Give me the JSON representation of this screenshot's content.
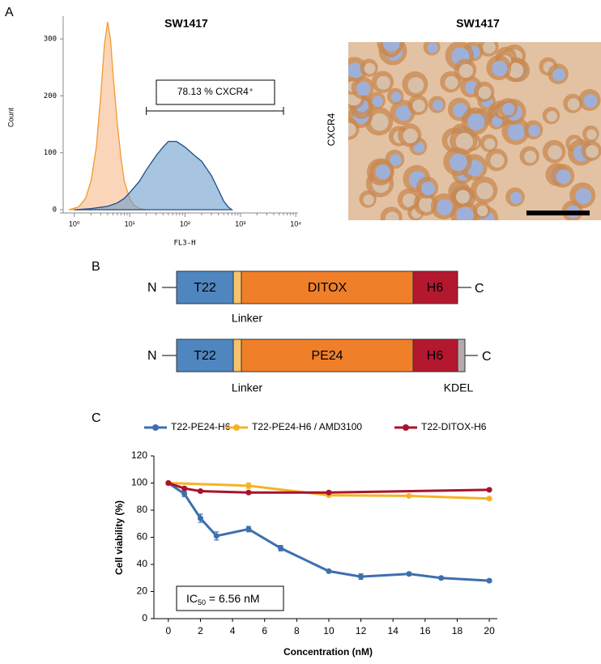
{
  "panel_labels": [
    "A",
    "B",
    "C"
  ],
  "chart_data": [
    {
      "type": "area",
      "title": "SW1417",
      "xlabel": "FL3-H",
      "ylabel": "Count",
      "xscale": "log",
      "xlim": [
        0.63,
        11000
      ],
      "xticks": [
        {
          "value": 1,
          "label": "10⁰"
        },
        {
          "value": 10,
          "label": "10¹"
        },
        {
          "value": 100,
          "label": "10²"
        },
        {
          "value": 1000,
          "label": "10³"
        },
        {
          "value": 10000,
          "label": "10⁴"
        }
      ],
      "ylim": [
        0,
        340
      ],
      "yticks": [
        0,
        100,
        200,
        300
      ],
      "series": [
        {
          "color": "#f39a2e",
          "fill": "#f7b98a",
          "x": [
            0.8,
            1.2,
            1.6,
            2,
            2.5,
            3,
            3.5,
            4,
            4.5,
            5,
            6,
            7,
            8,
            10,
            12,
            15,
            20
          ],
          "values": [
            0,
            5,
            20,
            50,
            110,
            200,
            290,
            330,
            300,
            240,
            150,
            90,
            50,
            20,
            8,
            2,
            0
          ]
        },
        {
          "color": "#1f4e8c",
          "fill": "#6c9dcc",
          "x": [
            1,
            2,
            4,
            6,
            8,
            10,
            15,
            20,
            30,
            40,
            50,
            70,
            100,
            150,
            200,
            300,
            400,
            500,
            600,
            700
          ],
          "values": [
            0,
            2,
            6,
            12,
            20,
            30,
            50,
            70,
            95,
            110,
            120,
            120,
            110,
            95,
            85,
            60,
            35,
            15,
            5,
            0
          ]
        }
      ],
      "annotation": {
        "text": "78.13 % CXCR4⁺",
        "range": [
          20,
          6000
        ]
      }
    },
    {
      "type": "line",
      "xlabel": "Concentration (nM)",
      "ylabel": "Cell viability (%)",
      "xlim": [
        -0.9,
        20.5
      ],
      "xticks": [
        0,
        2,
        4,
        6,
        8,
        10,
        12,
        14,
        16,
        18,
        20
      ],
      "ylim": [
        0,
        120
      ],
      "yticks": [
        0,
        20,
        40,
        60,
        80,
        100,
        120
      ],
      "series": [
        {
          "name": "T22-PE24-H6",
          "color": "#3d6fb0",
          "x": [
            0,
            1,
            2,
            3,
            5,
            7,
            10,
            12,
            15,
            17,
            20
          ],
          "values": [
            100,
            92,
            74,
            61,
            66,
            52,
            35,
            31,
            33,
            30,
            28
          ],
          "errors": [
            1,
            2,
            3,
            3,
            2,
            2,
            1,
            2,
            1,
            1,
            1
          ]
        },
        {
          "name": "T22-PE24-H6 / AMD3100",
          "color": "#f5b324",
          "x": [
            0,
            5,
            10,
            15,
            20
          ],
          "values": [
            100,
            98,
            91,
            90.5,
            88.5
          ],
          "errors": [
            1,
            2,
            1,
            1,
            1
          ]
        },
        {
          "name": "T22-DITOX-H6",
          "color": "#a8132e",
          "x": [
            0,
            1,
            2,
            5,
            10,
            20
          ],
          "values": [
            100,
            96,
            94,
            93,
            93,
            95
          ],
          "errors": [
            1,
            1,
            1,
            1,
            1,
            1
          ]
        }
      ],
      "annotation": {
        "text": "IC",
        "subscript": "50",
        "suffix": " = 6.56 nM"
      }
    }
  ],
  "image_panel": {
    "title": "SW1417",
    "ylabel": "CXCR4"
  },
  "diagram": {
    "constructs": [
      {
        "n": "N",
        "t22": "T22",
        "toxin": "DITOX",
        "h6": "H6",
        "c": "C",
        "linker": "Linker"
      },
      {
        "n": "N",
        "t22": "T22",
        "toxin": "PE24",
        "h6": "H6",
        "c": "C",
        "linker": "Linker",
        "kdel": "KDEL"
      }
    ]
  }
}
